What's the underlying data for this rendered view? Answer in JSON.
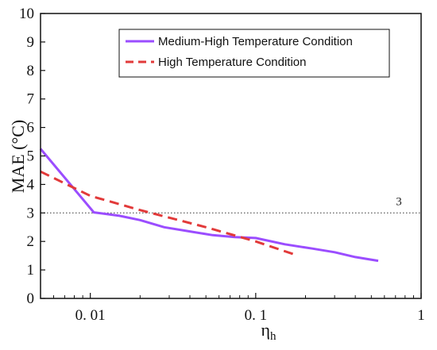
{
  "chart_data": {
    "type": "line",
    "xscale": "log",
    "xlim": [
      0.005,
      1
    ],
    "ylim": [
      0,
      10
    ],
    "x_ticks": [
      0.01,
      0.1,
      1
    ],
    "x_tick_labels": [
      "0. 01",
      "0. 1",
      "1"
    ],
    "y_ticks": [
      0,
      1,
      2,
      3,
      4,
      5,
      6,
      7,
      8,
      9,
      10
    ],
    "y_tick_labels": [
      "0",
      "1",
      "2",
      "3",
      "4",
      "5",
      "6",
      "7",
      "8",
      "9",
      "10"
    ],
    "xlabel": "η",
    "xlabel_sub": "h",
    "ylabel": "MAE (°C)",
    "grid": false,
    "legend_position": "top-right",
    "series": [
      {
        "name": "Medium-High Temperature Condition",
        "color": "#9b4dff",
        "style": "solid",
        "x": [
          0.005,
          0.0105,
          0.015,
          0.02,
          0.028,
          0.04,
          0.055,
          0.075,
          0.1,
          0.15,
          0.22,
          0.3,
          0.4,
          0.55
        ],
        "y": [
          5.25,
          3.02,
          2.9,
          2.75,
          2.5,
          2.35,
          2.22,
          2.15,
          2.12,
          1.9,
          1.75,
          1.62,
          1.45,
          1.32
        ]
      },
      {
        "name": "High Temperature Condition",
        "color": "#e23a3a",
        "style": "dashed",
        "x": [
          0.005,
          0.01,
          0.02,
          0.05,
          0.1,
          0.18
        ],
        "y": [
          4.45,
          3.6,
          3.1,
          2.5,
          2.0,
          1.5
        ]
      }
    ],
    "annotations": [
      {
        "type": "hline",
        "y": 3,
        "style": "dotted",
        "color": "#333333",
        "label": "3"
      }
    ]
  }
}
